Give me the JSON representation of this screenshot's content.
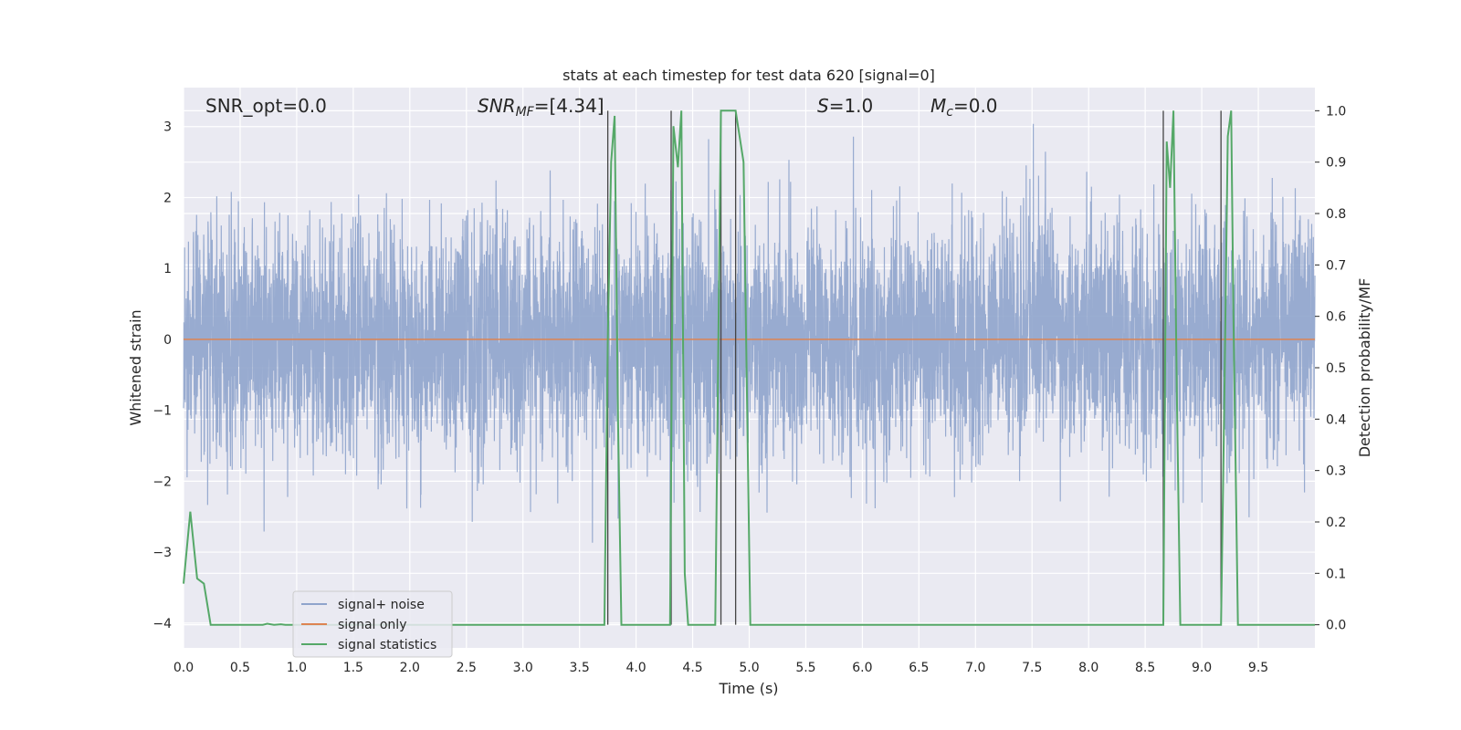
{
  "chart_data": {
    "type": "line",
    "title": "stats at each timestep for test data 620 [signal=0]",
    "xlabel": "Time (s)",
    "ylabel_left": "Whitened strain",
    "ylabel_right": "Detection probability/MF",
    "xlim": [
      0,
      10
    ],
    "ylim_left": [
      -4.35,
      3.55
    ],
    "ylim_right": [
      -0.045,
      1.045
    ],
    "x_ticks": [
      "0.0",
      "0.5",
      "1.0",
      "1.5",
      "2.0",
      "2.5",
      "3.0",
      "3.5",
      "4.0",
      "4.5",
      "5.0",
      "5.5",
      "6.0",
      "6.5",
      "7.0",
      "7.5",
      "8.0",
      "8.5",
      "9.0",
      "9.5"
    ],
    "y_ticks_left": [
      "3",
      "2",
      "1",
      "0",
      "−1",
      "−2",
      "−3",
      "−4"
    ],
    "y_ticks_right": [
      "1.0",
      "0.9",
      "0.8",
      "0.7",
      "0.6",
      "0.5",
      "0.4",
      "0.3",
      "0.2",
      "0.1",
      "0.0"
    ],
    "grid": true,
    "legend_position": "lower-left",
    "legend": [
      "signal+ noise",
      "signal only",
      "signal statistics"
    ],
    "annotations": {
      "snr_opt": "SNR_opt=0.0",
      "snr_mf_var": "SNR",
      "snr_mf_sub": "MF",
      "snr_mf_val": "=[4.34]",
      "s_var": "S",
      "s_val": "=1.0",
      "mc_var": "M",
      "mc_sub": "c",
      "mc_val": "=0.0"
    },
    "series": [
      {
        "name": "signal+ noise",
        "axis": "left",
        "color": "#8fa4cc",
        "style": "dense noise, approx std 0.8, range about -3.3 to 3.2",
        "sample_rate_hz": 600,
        "noise_std": 0.8
      },
      {
        "name": "signal only",
        "axis": "left",
        "color": "#dd8452",
        "x": [
          0,
          10
        ],
        "y": [
          0,
          0
        ]
      },
      {
        "name": "signal statistics",
        "axis": "right",
        "color": "#55a868",
        "x": [
          0.0,
          0.06,
          0.12,
          0.18,
          0.24,
          0.3,
          0.7,
          0.74,
          0.8,
          0.86,
          0.9,
          3.72,
          3.75,
          3.78,
          3.81,
          3.84,
          3.87,
          4.0,
          4.3,
          4.33,
          4.37,
          4.4,
          4.43,
          4.46,
          4.7,
          4.75,
          4.82,
          4.88,
          4.95,
          5.01,
          5.1,
          8.66,
          8.69,
          8.72,
          8.75,
          8.78,
          8.81,
          9.0,
          9.17,
          9.2,
          9.23,
          9.26,
          9.28,
          9.32,
          9.5,
          10.0
        ],
        "y": [
          0.08,
          0.22,
          0.09,
          0.08,
          0.0,
          0.0,
          0.0,
          0.002,
          0.0,
          0.001,
          0.0,
          0.0,
          0.55,
          0.9,
          0.99,
          0.4,
          0.0,
          0.0,
          0.0,
          0.97,
          0.89,
          1.0,
          0.1,
          0.0,
          0.0,
          1.0,
          1.0,
          1.0,
          0.9,
          0.0,
          0.0,
          0.0,
          0.94,
          0.85,
          1.0,
          0.45,
          0.0,
          0.0,
          0.0,
          0.45,
          0.95,
          1.0,
          0.6,
          0.0,
          0.0,
          0.0
        ]
      }
    ],
    "vertical_markers": {
      "color": "#444444",
      "x": [
        3.75,
        4.31,
        4.75,
        4.88,
        8.66,
        9.17
      ]
    }
  }
}
